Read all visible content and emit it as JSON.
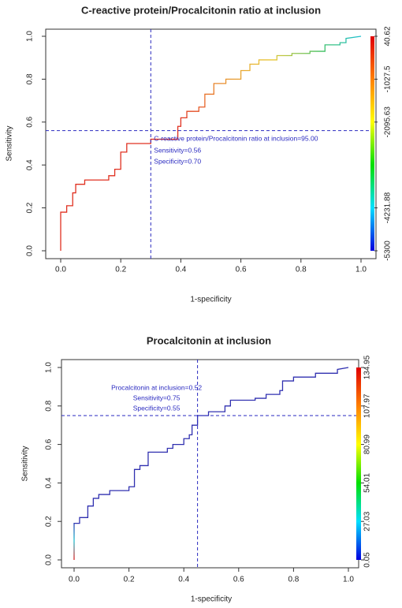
{
  "chart_data": [
    {
      "type": "roc",
      "title": "C-reactive protein/Procalcitonin ratio at inclusion",
      "xlabel": "1-specificity",
      "ylabel": "Sensitivity",
      "x": [
        0,
        0,
        0.02,
        0.02,
        0.04,
        0.04,
        0.05,
        0.05,
        0.08,
        0.08,
        0.16,
        0.16,
        0.18,
        0.18,
        0.2,
        0.2,
        0.22,
        0.22,
        0.3,
        0.3,
        0.39,
        0.39,
        0.4,
        0.4,
        0.42,
        0.42,
        0.46,
        0.46,
        0.48,
        0.48,
        0.51,
        0.51,
        0.55,
        0.55,
        0.6,
        0.6,
        0.63,
        0.63,
        0.66,
        0.66,
        0.72,
        0.72,
        0.77,
        0.77,
        0.83,
        0.83,
        0.88,
        0.88,
        0.93,
        0.93,
        0.95,
        0.95,
        1
      ],
      "values": [
        0,
        0.18,
        0.18,
        0.21,
        0.21,
        0.27,
        0.27,
        0.31,
        0.31,
        0.33,
        0.33,
        0.35,
        0.35,
        0.38,
        0.38,
        0.46,
        0.46,
        0.5,
        0.5,
        0.52,
        0.52,
        0.58,
        0.58,
        0.62,
        0.62,
        0.65,
        0.65,
        0.67,
        0.67,
        0.73,
        0.73,
        0.78,
        0.78,
        0.8,
        0.8,
        0.84,
        0.84,
        0.87,
        0.87,
        0.89,
        0.89,
        0.91,
        0.91,
        0.92,
        0.92,
        0.93,
        0.93,
        0.96,
        0.96,
        0.97,
        0.97,
        0.99,
        1
      ],
      "colors": [
        "#e03020",
        "#e03020",
        "#e03020",
        "#e03020",
        "#e03020",
        "#e03020",
        "#e8702a",
        "#e8a030",
        "#e8c838",
        "#40c060",
        "#20c0d0"
      ],
      "xlim": [
        0,
        1
      ],
      "ylim": [
        0,
        1
      ],
      "xticks": [
        {
          "value": 0,
          "label": "0.0"
        },
        0.2,
        0.4,
        0.6,
        0.8,
        {
          "value": 1,
          "label": "1.0"
        }
      ],
      "yticks": [
        {
          "value": 0,
          "label": "0.0"
        },
        0.2,
        0.4,
        0.6,
        0.8,
        {
          "value": 1,
          "label": "1.0"
        }
      ],
      "cutoff": {
        "x": 0.3,
        "y": 0.56
      },
      "annotations": [
        "C-reactive protein/Procalcitonin ratio at inclusion=95.00",
        "Sensitivity=0.56",
        "Specificity=0.70"
      ],
      "colorbar": {
        "colors": [
          "#e00000",
          "#ff8000",
          "#ffff00",
          "#00e000",
          "#00e0ff",
          "#0000e0"
        ],
        "lim": [
          -5300,
          40.62
        ],
        "ticks": [
          40.62,
          -1027.5,
          -2095.63,
          -4231.88,
          -5300
        ]
      }
    },
    {
      "type": "roc",
      "title": "Procalcitonin at inclusion",
      "xlabel": "1-specificity",
      "ylabel": "Sensitivity",
      "x": [
        0,
        0,
        0.02,
        0.02,
        0.05,
        0.05,
        0.07,
        0.07,
        0.09,
        0.09,
        0.13,
        0.13,
        0.2,
        0.2,
        0.22,
        0.22,
        0.24,
        0.24,
        0.27,
        0.27,
        0.34,
        0.34,
        0.36,
        0.36,
        0.4,
        0.4,
        0.42,
        0.42,
        0.43,
        0.43,
        0.45,
        0.45,
        0.49,
        0.49,
        0.55,
        0.55,
        0.57,
        0.57,
        0.66,
        0.66,
        0.7,
        0.7,
        0.75,
        0.75,
        0.76,
        0.76,
        0.8,
        0.8,
        0.88,
        0.88,
        0.96,
        0.96,
        1
      ],
      "values": [
        0,
        0.19,
        0.19,
        0.22,
        0.22,
        0.28,
        0.28,
        0.32,
        0.32,
        0.34,
        0.34,
        0.36,
        0.36,
        0.38,
        0.38,
        0.47,
        0.47,
        0.49,
        0.49,
        0.56,
        0.56,
        0.58,
        0.58,
        0.6,
        0.6,
        0.63,
        0.63,
        0.65,
        0.65,
        0.7,
        0.7,
        0.75,
        0.75,
        0.77,
        0.77,
        0.8,
        0.8,
        0.83,
        0.83,
        0.84,
        0.84,
        0.86,
        0.86,
        0.88,
        0.88,
        0.93,
        0.93,
        0.95,
        0.95,
        0.97,
        0.97,
        0.99,
        1
      ],
      "colors": [
        "#e02020",
        "#20c0d0",
        "#3030b0",
        "#3030b0",
        "#3030b0",
        "#3030b0",
        "#3030b0",
        "#3030b0",
        "#3030b0",
        "#3030b0",
        "#3030b0",
        "#3030b0",
        "#3030b0",
        "#3030b0",
        "#3030b0",
        "#3030b0",
        "#3030b0",
        "#3030b0",
        "#3030b0",
        "#3030b0",
        "#3030b0"
      ],
      "xlim": [
        0,
        1
      ],
      "ylim": [
        0,
        1
      ],
      "xticks": [
        {
          "value": 0,
          "label": "0.0"
        },
        0.2,
        0.4,
        0.6,
        0.8,
        {
          "value": 1,
          "label": "1.0"
        }
      ],
      "yticks": [
        {
          "value": 0,
          "label": "0.0"
        },
        0.2,
        0.4,
        0.6,
        0.8,
        {
          "value": 1,
          "label": "1.0"
        }
      ],
      "cutoff": {
        "x": 0.45,
        "y": 0.75
      },
      "annotations": [
        "Procalcitonin at inclusion=0.52",
        "Sensitivity=0.75",
        "Specificity=0.55"
      ],
      "colorbar": {
        "colors": [
          "#e00000",
          "#ff8000",
          "#ffff00",
          "#00e000",
          "#00e0ff",
          "#0000e0"
        ],
        "lim": [
          0.05,
          134.95
        ],
        "ticks": [
          134.95,
          107.97,
          80.99,
          54.01,
          27.03,
          0.05
        ]
      }
    }
  ]
}
